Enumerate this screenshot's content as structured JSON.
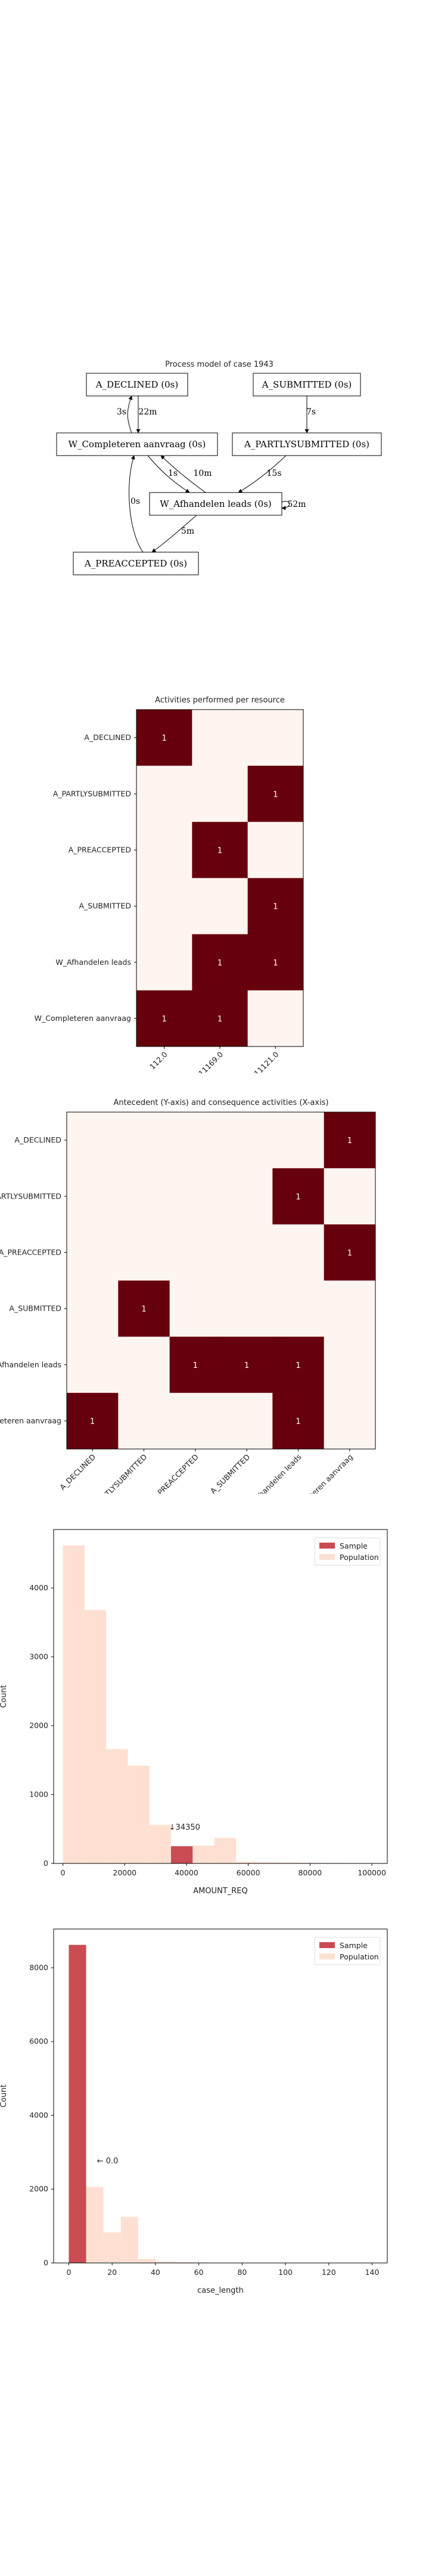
{
  "process_model": {
    "title": "Process model of case 1943",
    "nodes": [
      {
        "id": "declined",
        "label": "A_DECLINED (0s)"
      },
      {
        "id": "submitted",
        "label": "A_SUBMITTED (0s)"
      },
      {
        "id": "completeren",
        "label": "W_Completeren aanvraag (0s)"
      },
      {
        "id": "partly",
        "label": "A_PARTLYSUBMITTED (0s)"
      },
      {
        "id": "afhandelen",
        "label": "W_Afhandelen leads (0s)"
      },
      {
        "id": "preaccepted",
        "label": "A_PREACCEPTED (0s)"
      }
    ],
    "edges": [
      {
        "from": "completeren",
        "to": "declined",
        "label": "3s"
      },
      {
        "from": "declined",
        "to": "completeren",
        "label": "22m"
      },
      {
        "from": "submitted",
        "to": "partly",
        "label": "7s"
      },
      {
        "from": "completeren",
        "to": "afhandelen",
        "label": "1s"
      },
      {
        "from": "afhandelen",
        "to": "completeren",
        "label": "10m"
      },
      {
        "from": "partly",
        "to": "afhandelen",
        "label": "15s"
      },
      {
        "from": "afhandelen",
        "to": "afhandelen",
        "label": "52m"
      },
      {
        "from": "afhandelen",
        "to": "preaccepted",
        "label": "5m"
      },
      {
        "from": "preaccepted",
        "to": "completeren",
        "label": "0s"
      }
    ]
  },
  "chart_data": [
    {
      "type": "heatmap",
      "title": "Activities performed per resource",
      "rows": [
        "A_DECLINED",
        "A_PARTLYSUBMITTED",
        "A_PREACCEPTED",
        "A_SUBMITTED",
        "W_Afhandelen leads",
        "W_Completeren aanvraag"
      ],
      "cols": [
        "112.0",
        "11169.0",
        "11121.0"
      ],
      "values": [
        [
          1,
          0,
          0
        ],
        [
          0,
          0,
          1
        ],
        [
          0,
          1,
          0
        ],
        [
          0,
          0,
          1
        ],
        [
          0,
          1,
          1
        ],
        [
          1,
          1,
          0
        ]
      ],
      "colors": {
        "low": "#fff5f0",
        "high": "#67000d"
      }
    },
    {
      "type": "heatmap",
      "title": "Antecedent (Y-axis) and consequence activities (X-axis)",
      "rows": [
        "A_DECLINED",
        "A_PARTLYSUBMITTED",
        "A_PREACCEPTED",
        "A_SUBMITTED",
        "W_Afhandelen leads",
        "W_Completeren aanvraag"
      ],
      "cols": [
        "A_DECLINED",
        "A_PARTLYSUBMITTED",
        "A_PREACCEPTED",
        "A_SUBMITTED",
        "W_Afhandelen leads",
        "W_Completeren aanvraag"
      ],
      "values": [
        [
          0,
          0,
          0,
          0,
          0,
          1
        ],
        [
          0,
          0,
          0,
          0,
          1,
          0
        ],
        [
          0,
          0,
          0,
          0,
          0,
          1
        ],
        [
          0,
          1,
          0,
          0,
          0,
          0
        ],
        [
          0,
          0,
          1,
          1,
          1,
          0
        ],
        [
          1,
          0,
          0,
          0,
          1,
          0
        ]
      ]
    },
    {
      "type": "bar",
      "xlabel": "AMOUNT_REQ",
      "ylabel": "Count",
      "xlim": [
        -3000,
        105000
      ],
      "ylim": [
        0,
        4850
      ],
      "xticks": [
        0,
        20000,
        40000,
        60000,
        80000,
        100000
      ],
      "yticks": [
        0,
        1000,
        2000,
        3000,
        4000
      ],
      "bin_width": 7000,
      "series": [
        {
          "name": "Population",
          "color": "#fee0d2",
          "bins": [
            {
              "x": 0,
              "count": 4620
            },
            {
              "x": 7000,
              "count": 3680
            },
            {
              "x": 14000,
              "count": 1660
            },
            {
              "x": 21000,
              "count": 1420
            },
            {
              "x": 28000,
              "count": 560
            },
            {
              "x": 35000,
              "count": 150
            },
            {
              "x": 42000,
              "count": 260
            },
            {
              "x": 49000,
              "count": 370
            },
            {
              "x": 56000,
              "count": 25
            },
            {
              "x": 63000,
              "count": 18
            },
            {
              "x": 70000,
              "count": 12
            },
            {
              "x": 77000,
              "count": 8
            },
            {
              "x": 84000,
              "count": 5
            },
            {
              "x": 91000,
              "count": 3
            },
            {
              "x": 98000,
              "count": 2
            }
          ]
        },
        {
          "name": "Sample",
          "color": "#cb4b53",
          "bins": [
            {
              "x": 35000,
              "count": 250
            }
          ]
        }
      ],
      "annotation": {
        "text": "↓34350",
        "x": 34350,
        "y": 490
      },
      "legend": "top-right"
    },
    {
      "type": "bar",
      "xlabel": "case_length",
      "ylabel": "Count",
      "xlim": [
        -7,
        147
      ],
      "ylim": [
        0,
        9050
      ],
      "xticks": [
        0,
        20,
        40,
        60,
        80,
        100,
        120,
        140
      ],
      "yticks": [
        0,
        2000,
        4000,
        6000,
        8000
      ],
      "bin_width": 8,
      "series": [
        {
          "name": "Population",
          "color": "#fee0d2",
          "bins": [
            {
              "x": 0,
              "count": 8620
            },
            {
              "x": 8,
              "count": 2060
            },
            {
              "x": 16,
              "count": 830
            },
            {
              "x": 24,
              "count": 1250
            },
            {
              "x": 32,
              "count": 110
            },
            {
              "x": 40,
              "count": 40
            },
            {
              "x": 48,
              "count": 25
            },
            {
              "x": 56,
              "count": 15
            },
            {
              "x": 64,
              "count": 10
            },
            {
              "x": 72,
              "count": 6
            },
            {
              "x": 80,
              "count": 4
            },
            {
              "x": 88,
              "count": 3
            }
          ]
        },
        {
          "name": "Sample",
          "color": "#cb4b53",
          "bins": [
            {
              "x": 0,
              "count": 8620
            }
          ]
        }
      ],
      "annotation": {
        "text": "← 0.0",
        "x": 13,
        "y": 2700
      },
      "legend": "top-right"
    }
  ]
}
